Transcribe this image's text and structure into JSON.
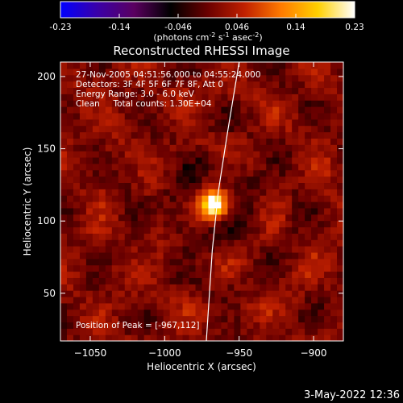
{
  "colorbar": {
    "ticks": [
      "-0.23",
      "-0.14",
      "-0.046",
      "0.046",
      "0.14",
      "0.23"
    ],
    "units_main": "(photons cm",
    "units_sup1": "-2",
    "units_mid": " s",
    "units_sup2": "-1",
    "units_mid2": " asec",
    "units_sup3": "-2",
    "units_end": ")",
    "stops": [
      "#0000ff",
      "#3a00a8",
      "#5a0060",
      "#000000",
      "#6a0000",
      "#c02000",
      "#ff7a00",
      "#ffd000",
      "#ffffff"
    ]
  },
  "chart_data": {
    "type": "heatmap",
    "title": "Reconstructed RHESSI Image",
    "xlabel": "Heliocentric X (arcsec)",
    "ylabel": "Heliocentric Y (arcsec)",
    "xlim": [
      -1070,
      -880
    ],
    "ylim": [
      17,
      210
    ],
    "xticks": [
      -1050,
      -1000,
      -950,
      -900
    ],
    "yticks": [
      50,
      100,
      150,
      200
    ],
    "xtick_labels": [
      "−1050",
      "−1000",
      "−950",
      "−900"
    ],
    "ytick_labels": [
      "50",
      "100",
      "150",
      "200"
    ],
    "peak": {
      "x": -967,
      "y": 112,
      "value": 0.23
    },
    "limb": [
      [
        -972,
        17
      ],
      [
        -968,
        80
      ],
      [
        -964,
        120
      ],
      [
        -958,
        160
      ],
      [
        -950,
        210
      ]
    ],
    "annotations": [
      "27-Nov-2005 04:51:56.000 to 04:55:24.000",
      "Detectors: 3F 4F 5F 6F 7F 8F, Att 0",
      "Energy Range: 3.0 - 6.0 keV",
      "Clean     Total counts: 1.30E+04"
    ],
    "peak_label": "Position of Peak = [-967,112]"
  },
  "timestamp": "3-May-2022 12:36"
}
